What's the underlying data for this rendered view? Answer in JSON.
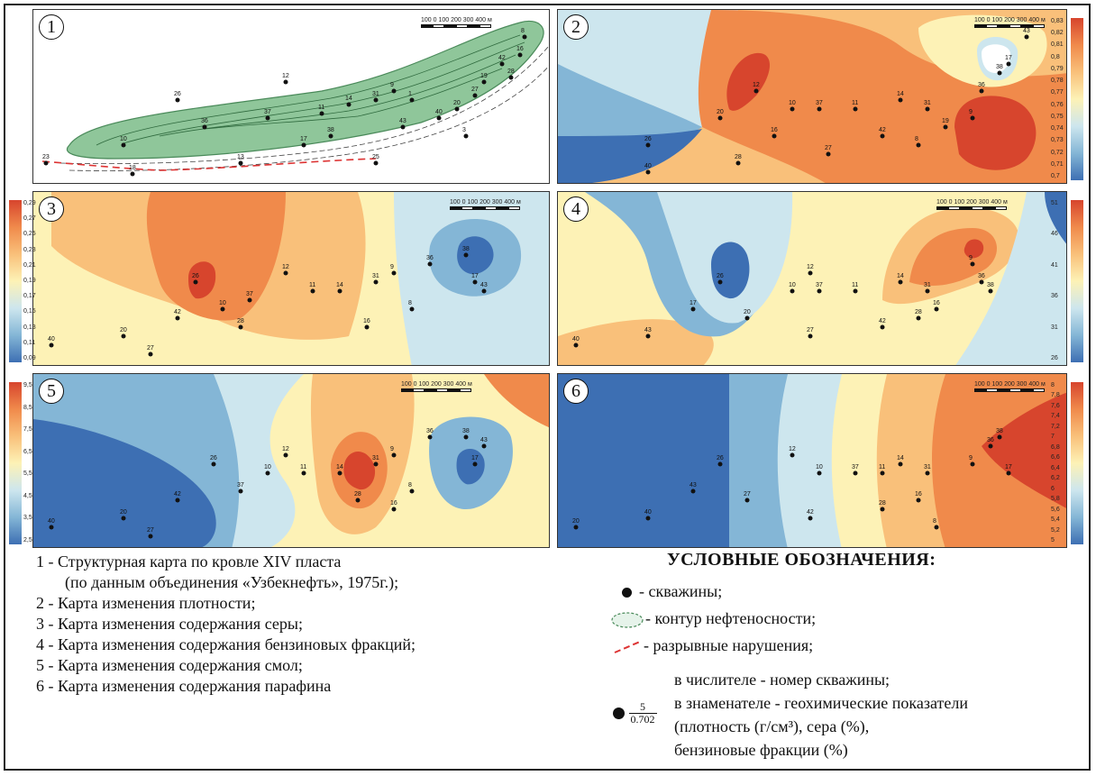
{
  "panels": [
    {
      "num": "1",
      "scale_labels": "100  0  100 200 300 400 м"
    },
    {
      "num": "2",
      "scale_labels": "100  0  100 200 300 400 м",
      "colorbar": [
        "0,83",
        "0,82",
        "0,81",
        "0,8",
        "0,79",
        "0,78",
        "0,77",
        "0,76",
        "0,75",
        "0,74",
        "0,73",
        "0,72",
        "0,71",
        "0,7"
      ]
    },
    {
      "num": "3",
      "scale_labels": "100  0  100 200 300 400 м",
      "colorbar": [
        "0,29",
        "0,27",
        "0,25",
        "0,23",
        "0,21",
        "0,19",
        "0,17",
        "0,15",
        "0,13",
        "0,11",
        "0,09"
      ]
    },
    {
      "num": "4",
      "scale_labels": "100  0  100 200 300 400 м",
      "colorbar": [
        "51",
        "46",
        "41",
        "36",
        "31",
        "26"
      ]
    },
    {
      "num": "5",
      "scale_labels": "100  0  100 200 300 400 м",
      "colorbar": [
        "9,5",
        "8,5",
        "7,5",
        "6,5",
        "5,5",
        "4,5",
        "3,5",
        "2,5"
      ]
    },
    {
      "num": "6",
      "scale_labels": "100  0  100 200 300 400 м",
      "colorbar": [
        "8",
        "7,8",
        "7,6",
        "7,4",
        "7,2",
        "7",
        "6,8",
        "6,6",
        "6,4",
        "6,2",
        "6",
        "5,8",
        "5,6",
        "5,4",
        "5,2",
        "5"
      ]
    }
  ],
  "wells": [
    "26",
    "12",
    "10",
    "37",
    "11",
    "14",
    "31",
    "9",
    "36",
    "38",
    "17",
    "43",
    "40",
    "20",
    "27",
    "42",
    "28",
    "16",
    "8",
    "19",
    "1",
    "23",
    "18",
    "13",
    "3",
    "25"
  ],
  "captions": [
    "1 - Структурная карта по кровле XIV пласта",
    "(по данным объединения «Узбекнефть», 1975г.);",
    "2 - Карта изменения плотности;",
    "3 - Карта изменения содержания серы;",
    "4 - Карта изменения содержания бензиновых фракций;",
    "5 - Карта изменения содержания смол;",
    "6 - Карта изменения содержания парафина"
  ],
  "legend": {
    "title": "УСЛОВНЫЕ ОБОЗНАЧЕНИЯ:",
    "wells": "- скважины;",
    "contour": "- контур нефтеносности;",
    "faults": "- разрывные нарушения;",
    "line1": "в числителе - номер скважины;",
    "line2": "в знаменателе - геохимические показатели",
    "line3": "(плотность (г/см³), сера (%),",
    "line4": "бензиновые фракции (%)",
    "frac_num": "5",
    "frac_den": "0.702"
  },
  "colors": {
    "red": "#d7452d",
    "orange": "#f08a4b",
    "lightorange": "#f9c07a",
    "yellow": "#fdf2b6",
    "lightblue": "#cde6ee",
    "blue": "#84b6d6",
    "darkblue": "#3d6fb3",
    "green": "#8fc69a"
  }
}
